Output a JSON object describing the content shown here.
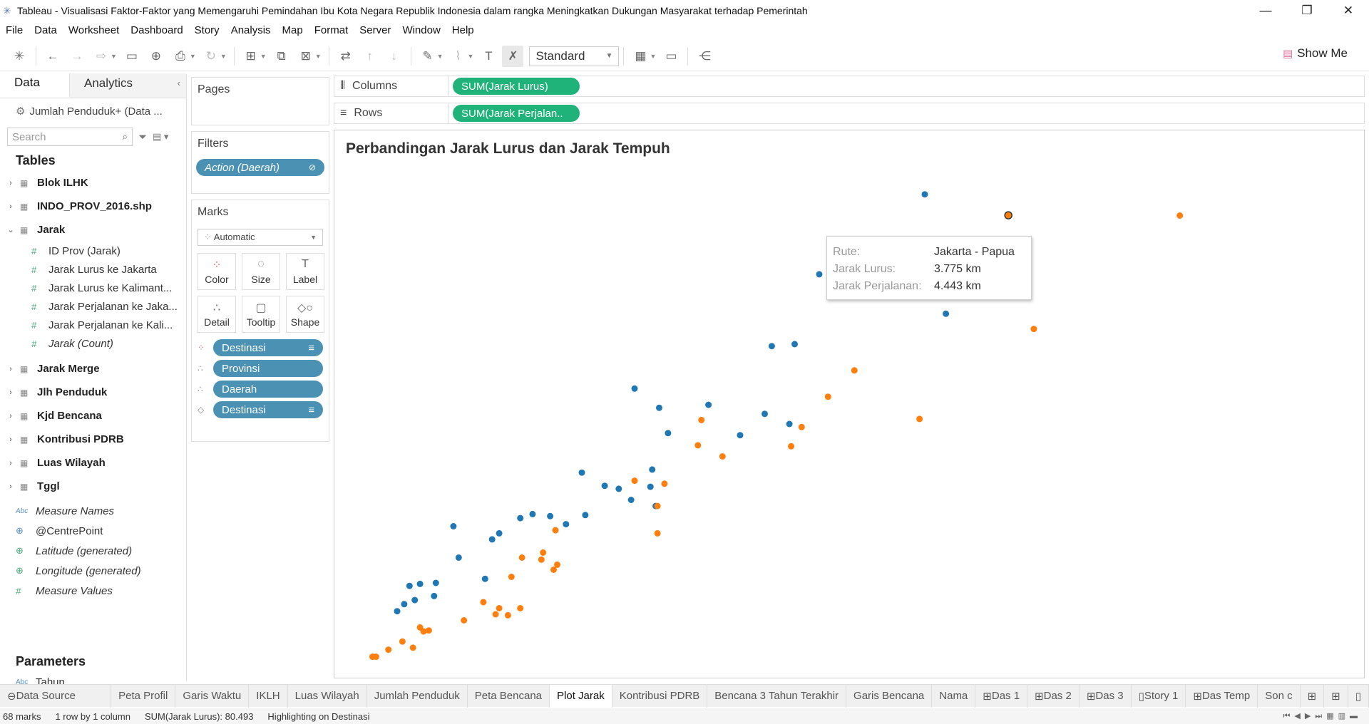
{
  "window": {
    "title": "Tableau - Visualisasi Faktor-Faktor yang Memengaruhi Pemindahan Ibu Kota Negara Republik Indonesia dalam rangka Meningkatkan Dukungan Masyarakat terhadap Pemerintah"
  },
  "menu": [
    "File",
    "Data",
    "Worksheet",
    "Dashboard",
    "Story",
    "Analysis",
    "Map",
    "Format",
    "Server",
    "Window",
    "Help"
  ],
  "toolbar": {
    "fit_select": "Standard",
    "show_me": "Show Me"
  },
  "data_pane": {
    "tab_data": "Data",
    "tab_analytics": "Analytics",
    "datasource": "Jumlah Penduduk+ (Data ...",
    "search_placeholder": "Search",
    "tables_heading": "Tables",
    "tables_top": [
      "Blok ILHK",
      "INDO_PROV_2016.shp",
      "Jarak"
    ],
    "jarak_fields": [
      "ID Prov (Jarak)",
      "Jarak Lurus ke Jakarta",
      "Jarak Lurus ke Kalimant...",
      "Jarak Perjalanan ke Jaka...",
      "Jarak Perjalanan ke Kali...",
      "Jarak (Count)"
    ],
    "tables_bottom": [
      "Jarak Merge",
      "Jlh Penduduk",
      "Kjd Bencana",
      "Kontribusi PDRB",
      "Luas Wilayah",
      "Tggl"
    ],
    "extra_fields": [
      "Measure Names",
      "@CentrePoint",
      "Latitude (generated)",
      "Longitude (generated)",
      "Measure Values"
    ],
    "parameters_heading": "Parameters",
    "parameters": [
      "Tahun"
    ]
  },
  "shelves": {
    "pages_label": "Pages",
    "filters_label": "Filters",
    "filter_pill": "Action (Daerah)",
    "marks_label": "Marks",
    "mark_type": "Automatic",
    "mark_buttons": [
      "Color",
      "Size",
      "Label",
      "Detail",
      "Tooltip",
      "Shape"
    ],
    "mark_pills": [
      "Destinasi",
      "Provinsi",
      "Daerah",
      "Destinasi"
    ],
    "columns_label": "Columns",
    "columns_pill": "SUM(Jarak Lurus)",
    "rows_label": "Rows",
    "rows_pill": "SUM(Jarak Perjalan.."
  },
  "view": {
    "title": "Perbandingan Jarak Lurus dan Jarak Tempuh",
    "tooltip": {
      "k1": "Rute:",
      "v1": "Jakarta - Papua",
      "k2": "Jarak Lurus:",
      "v2": "3.775 km",
      "k3": "Jarak Perjalanan:",
      "v3": "4.443 km"
    }
  },
  "chart_data": {
    "type": "scatter",
    "title": "Perbandingan Jarak Lurus dan Jarak Tempuh",
    "xlabel": "",
    "ylabel": "",
    "colors": {
      "blue": "#1f77b4",
      "orange": "#ff7f0e"
    },
    "series": [
      {
        "color": "blue",
        "points": [
          [
            3300,
            4650
          ],
          [
            2700,
            3860
          ],
          [
            3420,
            3470
          ],
          [
            2430,
            3150
          ],
          [
            2560,
            3170
          ],
          [
            1650,
            2730
          ],
          [
            1790,
            2540
          ],
          [
            2070,
            2570
          ],
          [
            2390,
            2480
          ],
          [
            1840,
            2290
          ],
          [
            2250,
            2270
          ],
          [
            2530,
            2380
          ],
          [
            1750,
            1930
          ],
          [
            1350,
            1900
          ],
          [
            1480,
            1770
          ],
          [
            1740,
            1760
          ],
          [
            1560,
            1740
          ],
          [
            1630,
            1630
          ],
          [
            1770,
            1570
          ],
          [
            1170,
            1470
          ],
          [
            1370,
            1480
          ],
          [
            1070,
            1490
          ],
          [
            1000,
            1450
          ],
          [
            1260,
            1390
          ],
          [
            880,
            1300
          ],
          [
            620,
            1370
          ],
          [
            840,
            1240
          ],
          [
            650,
            1060
          ],
          [
            800,
            850
          ],
          [
            520,
            810
          ],
          [
            510,
            680
          ],
          [
            430,
            800
          ],
          [
            370,
            780
          ],
          [
            340,
            600
          ],
          [
            400,
            640
          ],
          [
            300,
            530
          ]
        ]
      },
      {
        "color": "orange",
        "points": [
          [
            4750,
            4440
          ],
          [
            3340,
            3950
          ],
          [
            3920,
            3320
          ],
          [
            2900,
            2910
          ],
          [
            2750,
            2650
          ],
          [
            2030,
            2420
          ],
          [
            3270,
            2430
          ],
          [
            2600,
            2350
          ],
          [
            2540,
            2160
          ],
          [
            2010,
            2170
          ],
          [
            2150,
            2060
          ],
          [
            1650,
            1820
          ],
          [
            1820,
            1790
          ],
          [
            1780,
            1570
          ],
          [
            1780,
            1300
          ],
          [
            1200,
            1330
          ],
          [
            1130,
            1110
          ],
          [
            1010,
            1060
          ],
          [
            1120,
            1040
          ],
          [
            1210,
            990
          ],
          [
            1190,
            940
          ],
          [
            950,
            870
          ],
          [
            790,
            620
          ],
          [
            1000,
            560
          ],
          [
            880,
            560
          ],
          [
            860,
            500
          ],
          [
            930,
            490
          ],
          [
            680,
            440
          ],
          [
            480,
            340
          ],
          [
            430,
            370
          ],
          [
            450,
            330
          ],
          [
            390,
            170
          ],
          [
            330,
            230
          ],
          [
            250,
            150
          ],
          [
            160,
            80
          ],
          [
            180,
            80
          ]
        ]
      }
    ],
    "highlighted_point": [
      3775,
      4443
    ]
  },
  "sheet_tabs": [
    "Data Source",
    "Peta Profil",
    "Garis Waktu",
    "IKLH",
    "Luas Wilayah",
    "Jumlah Penduduk",
    "Peta Bencana",
    "Plot Jarak",
    "Kontribusi PDRB",
    "Bencana 3 Tahun Terakhir",
    "Garis Bencana",
    "Nama",
    "Das 1",
    "Das 2",
    "Das 3",
    "Story 1",
    "Das Temp",
    "Son c"
  ],
  "active_sheet": "Plot Jarak",
  "status": {
    "marks": "68 marks",
    "rows": "1 row by 1 column",
    "sum": "SUM(Jarak Lurus): 80.493",
    "highlight": "Highlighting on Destinasi"
  }
}
